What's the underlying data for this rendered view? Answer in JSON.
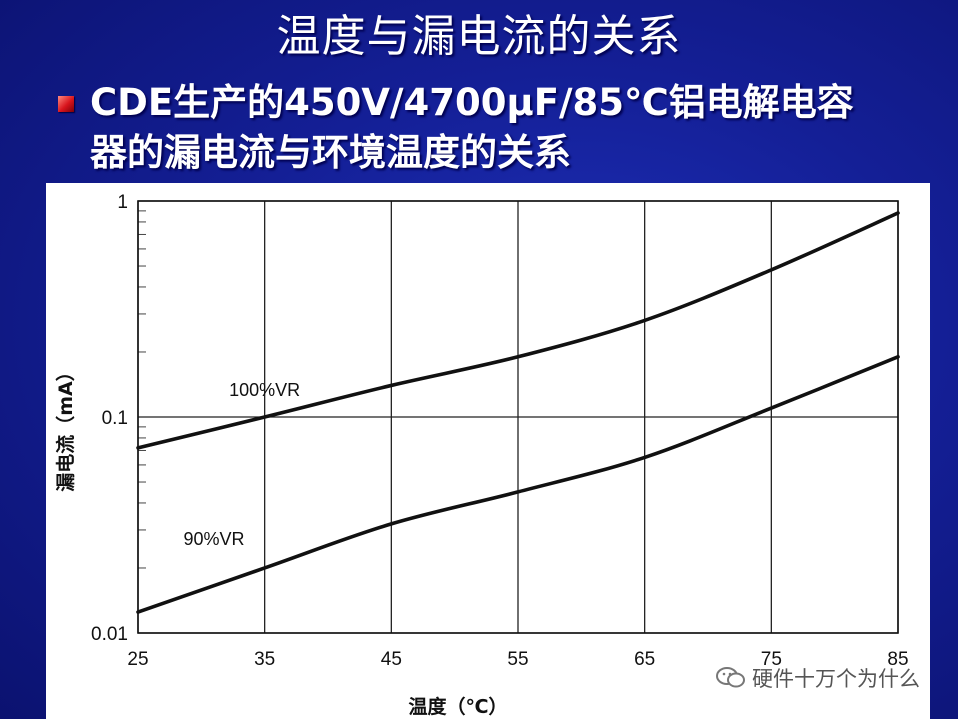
{
  "slide": {
    "title": "温度与漏电流的关系",
    "bullet_line1": "CDE生产的450V/4700μF/85℃铝电解电容",
    "bullet_line2": "器的漏电流与环境温度的关系"
  },
  "watermark": {
    "text": "硬件十万个为什么",
    "icon": "wechat-chat-icon"
  },
  "colors": {
    "background": "#141f96",
    "text": "#ffffff",
    "bullet": "#d8141c",
    "curve": "#111111"
  },
  "chart_data": {
    "type": "line",
    "xlabel": "温度（℃）",
    "ylabel": "漏电流（mA）",
    "x_ticks": [
      "25",
      "35",
      "45",
      "55",
      "65",
      "75",
      "85"
    ],
    "y_ticks": [
      "1",
      "0.1",
      "0.01"
    ],
    "xlim": [
      25,
      85
    ],
    "ylim": [
      0.01,
      1
    ],
    "yscale": "log",
    "grid": true,
    "x": [
      25,
      35,
      45,
      55,
      65,
      75,
      85
    ],
    "series": [
      {
        "name": "100%VR",
        "values": [
          0.072,
          0.1,
          0.14,
          0.19,
          0.28,
          0.48,
          0.88
        ]
      },
      {
        "name": "90%VR",
        "values": [
          0.0125,
          0.02,
          0.032,
          0.045,
          0.065,
          0.11,
          0.19
        ]
      }
    ]
  }
}
